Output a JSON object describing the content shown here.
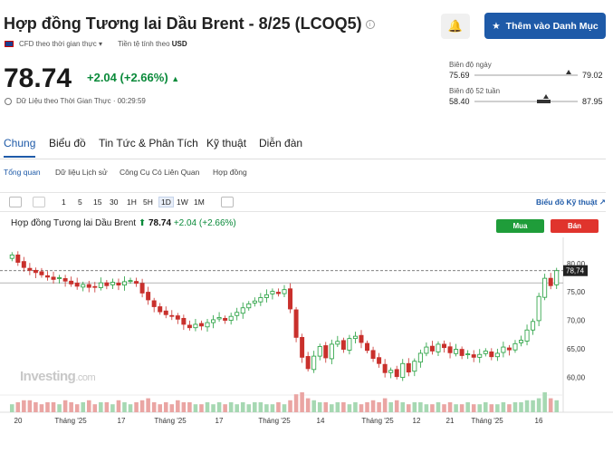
{
  "header": {
    "title": "Hợp đồng Tương lai Dầu Brent - 8/25 (LCOQ5)",
    "info_icon": "info-icon",
    "bell_icon": "bell-plus-icon",
    "add_button": "Thêm vào Danh Mục",
    "cfd_label": "CFD theo thời gian thực",
    "currency_label": "Tiền tệ tính theo",
    "currency": "USD"
  },
  "quote": {
    "price": "78.74",
    "change": "+2.04",
    "change_pct": "(+2.66%)",
    "realtime_label": "Dữ Liệu theo Thời Gian Thực · 00:29:59"
  },
  "ranges": {
    "day_label": "Biên độ ngày",
    "day_low": "75.69",
    "day_high": "79.02",
    "day_position": 0.91,
    "week52_label": "Biên độ 52 tuần",
    "week52_low": "58.40",
    "week52_high": "87.95",
    "week52_position": 0.69
  },
  "tabs": [
    "Chung",
    "Biểu đồ",
    "Tin Tức & Phân Tích",
    "Kỹ thuật",
    "Diễn đàn"
  ],
  "subtabs": [
    "Tổng quan",
    "Dữ liệu Lịch sử",
    "Công Cụ Có Liên Quan",
    "Hợp đồng"
  ],
  "chart_toolbar": {
    "timeframes": [
      "1",
      "5",
      "15",
      "30",
      "1H",
      "5H",
      "1D",
      "1W",
      "1M"
    ],
    "selected": "1D",
    "link": "Biểu đồ Kỹ thuật"
  },
  "chart_header": {
    "name": "Hợp đồng Tương lai Dầu Brent",
    "price": "78.74",
    "change": "+2.04",
    "change_pct": "(+2.66%)",
    "buy": "Mua",
    "sell": "Bán"
  },
  "watermark": {
    "brand": "Investing",
    "suffix": ".com"
  },
  "chart_data": {
    "type": "candlestick",
    "y_ticks": [
      "80,00",
      "75,00",
      "70,00",
      "65,00",
      "60,00"
    ],
    "ylim": [
      57.5,
      83
    ],
    "last_price_label": "78,74",
    "x_ticks": [
      "20",
      "Tháng '25",
      "17",
      "Tháng '25",
      "17",
      "Tháng '25",
      "14",
      "Tháng '25",
      "12",
      "21",
      "Tháng '25",
      "16"
    ],
    "colors": {
      "up": "#1f9d3a",
      "down": "#c9302c",
      "vol_up": "#a6d8b2",
      "vol_down": "#eaa5a3"
    },
    "closes": [
      81.5,
      80.2,
      79.3,
      78.8,
      78.4,
      78.0,
      77.6,
      77.2,
      77.5,
      76.9,
      76.4,
      76.0,
      76.3,
      75.8,
      75.9,
      76.6,
      76.1,
      76.7,
      76.2,
      76.8,
      77.0,
      76.5,
      74.8,
      73.6,
      72.4,
      71.5,
      71.0,
      70.8,
      70.2,
      69.3,
      68.7,
      69.3,
      69.0,
      69.6,
      70.1,
      70.5,
      70.0,
      70.7,
      71.4,
      72.2,
      72.9,
      73.4,
      74.0,
      74.5,
      75.1,
      74.7,
      75.4,
      72.0,
      67.0,
      63.5,
      61.5,
      63.7,
      65.4,
      63.4,
      65.8,
      66.3,
      64.9,
      66.8,
      67.2,
      66.1,
      64.7,
      63.3,
      62.4,
      60.8,
      61.2,
      60.1,
      62.4,
      60.9,
      62.8,
      64.2,
      65.3,
      64.6,
      65.8,
      65.2,
      64.3,
      64.9,
      63.8,
      64.1,
      63.5,
      64.0,
      64.6,
      63.6,
      64.2,
      65.3,
      64.8,
      65.9,
      66.5,
      68.3,
      69.8,
      74.2,
      77.4,
      76.1,
      78.74
    ],
    "volumes": [
      0.4,
      0.5,
      0.6,
      0.6,
      0.5,
      0.4,
      0.5,
      0.5,
      0.4,
      0.6,
      0.5,
      0.4,
      0.5,
      0.6,
      0.4,
      0.5,
      0.5,
      0.4,
      0.6,
      0.5,
      0.4,
      0.5,
      0.6,
      0.7,
      0.5,
      0.4,
      0.5,
      0.4,
      0.6,
      0.5,
      0.5,
      0.4,
      0.4,
      0.5,
      0.4,
      0.5,
      0.4,
      0.5,
      0.4,
      0.5,
      0.4,
      0.5,
      0.5,
      0.4,
      0.4,
      0.5,
      0.4,
      0.6,
      0.9,
      1.0,
      0.7,
      0.6,
      0.5,
      0.5,
      0.4,
      0.5,
      0.5,
      0.4,
      0.5,
      0.4,
      0.5,
      0.6,
      0.5,
      0.7,
      0.5,
      0.6,
      0.5,
      0.4,
      0.5,
      0.5,
      0.4,
      0.4,
      0.5,
      0.4,
      0.5,
      0.4,
      0.4,
      0.5,
      0.4,
      0.4,
      0.5,
      0.4,
      0.4,
      0.5,
      0.4,
      0.5,
      0.5,
      0.6,
      0.6,
      0.7,
      1.0,
      0.7,
      0.6
    ]
  }
}
